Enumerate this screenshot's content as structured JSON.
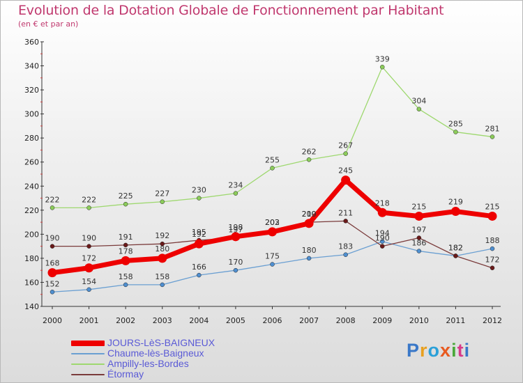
{
  "title": "Evolution de la Dotation Globale de Fonctionnement par Habitant",
  "subtitle": "(en € et par an)",
  "logo_text": "Proxiti",
  "chart_data": {
    "type": "line",
    "title": "Evolution de la Dotation Globale de Fonctionnement par Habitant",
    "subtitle": "(en € et par an)",
    "xlabel": "",
    "ylabel": "",
    "ylim": [
      140,
      360
    ],
    "yticks": [
      140,
      160,
      180,
      200,
      220,
      240,
      260,
      280,
      300,
      320,
      340,
      360
    ],
    "categories": [
      "2000",
      "2001",
      "2002",
      "2003",
      "2004",
      "2005",
      "2006",
      "2007",
      "2008",
      "2009",
      "2010",
      "2011",
      "2012"
    ],
    "grid": false,
    "legend_position": "bottom-left",
    "series": [
      {
        "name": "JOURS-LèS-BAIGNEUX",
        "color": "#ee0000",
        "values": [
          168,
          172,
          178,
          180,
          192,
          198,
          202,
          209,
          245,
          218,
          215,
          219,
          215
        ],
        "labels": [
          "168",
          "172",
          "178",
          "180",
          "192",
          "198",
          "202",
          "209",
          "245",
          "218",
          "215",
          "219",
          "215"
        ]
      },
      {
        "name": "Chaume-lès-Baigneux",
        "color": "#6a9fd2",
        "values": [
          152,
          154,
          158,
          158,
          166,
          170,
          175,
          180,
          183,
          194,
          186,
          182,
          188
        ],
        "labels": [
          "152",
          "154",
          "158",
          "158",
          "166",
          "170",
          "175",
          "180",
          "183",
          "194",
          "186",
          "182",
          "188"
        ]
      },
      {
        "name": "Ampilly-les-Bordes",
        "color": "#9ed86f",
        "values": [
          222,
          222,
          225,
          227,
          230,
          234,
          255,
          262,
          267,
          339,
          304,
          285,
          281
        ],
        "labels": [
          "222",
          "222",
          "225",
          "227",
          "230",
          "234",
          "255",
          "262",
          "267",
          "339",
          "304",
          "285",
          "281"
        ]
      },
      {
        "name": "Étormay",
        "color": "#7a3b3b",
        "values": [
          190,
          190,
          191,
          192,
          195,
          197,
          203,
          210,
          211,
          190,
          197,
          182,
          172
        ],
        "labels": [
          "190",
          "190",
          "191",
          "192",
          "195",
          "197",
          "203",
          "210",
          "211",
          "190",
          "197",
          "182",
          "172"
        ]
      }
    ]
  }
}
